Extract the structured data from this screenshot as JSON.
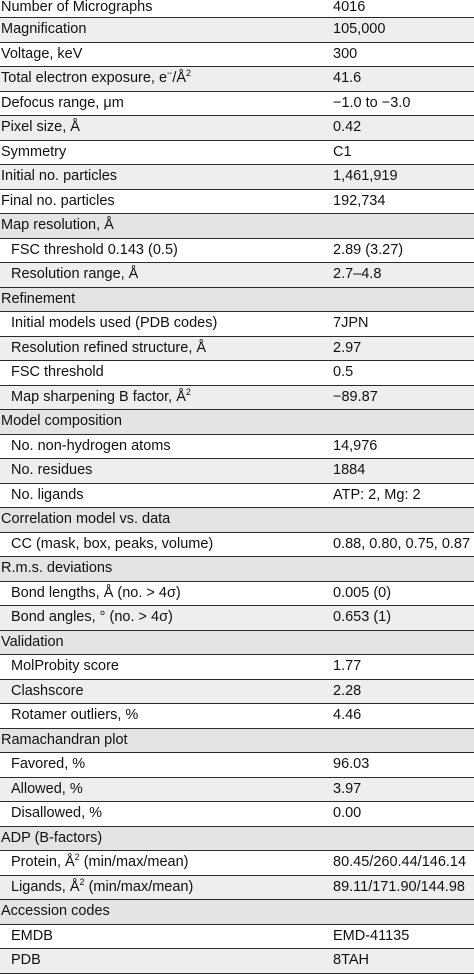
{
  "rows": [
    {
      "label": "Number of Micrographs",
      "value": "4016",
      "type": "top"
    },
    {
      "label": "Magnification",
      "value": "105,000",
      "type": "shade"
    },
    {
      "label": "Voltage, keV",
      "value": "300",
      "type": "plain"
    },
    {
      "label": "Total electron exposure, e",
      "label_sup": "−",
      "label_mid": "/Å",
      "label_sup2": "2",
      "value": "41.6",
      "type": "shade"
    },
    {
      "label": "Defocus range, μm",
      "value": "−1.0 to −3.0",
      "type": "plain"
    },
    {
      "label": "Pixel size, Å",
      "value": "0.42",
      "type": "shade"
    },
    {
      "label": "Symmetry",
      "value": "C1",
      "type": "plain"
    },
    {
      "label": "Initial no. particles",
      "value": "1,461,919",
      "type": "shade"
    },
    {
      "label": "Final no. particles",
      "value": "192,734",
      "type": "plain"
    },
    {
      "label": "Map resolution, Å",
      "value": "",
      "type": "section"
    },
    {
      "label": "FSC threshold 0.143 (0.5)",
      "value": "2.89 (3.27)",
      "type": "sub"
    },
    {
      "label": "Resolution range, Å",
      "value": "2.7–4.8",
      "type": "sub shade"
    },
    {
      "label": "Refinement",
      "value": "",
      "type": "section"
    },
    {
      "label": "Initial models used (PDB codes)",
      "value": "7JPN",
      "type": "sub"
    },
    {
      "label": "Resolution refined structure, Å",
      "value": "2.97",
      "type": "sub shade"
    },
    {
      "label": "FSC threshold",
      "value": "0.5",
      "type": "sub"
    },
    {
      "label": "Map sharpening B factor, Å",
      "label_sup": "2",
      "value": "−89.87",
      "type": "sub shade"
    },
    {
      "label": "Model composition",
      "value": "",
      "type": "section"
    },
    {
      "label": "No. non-hydrogen atoms",
      "value": "14,976",
      "type": "sub"
    },
    {
      "label": "No. residues",
      "value": "1884",
      "type": "sub shade"
    },
    {
      "label": "No. ligands",
      "value": "ATP: 2, Mg: 2",
      "type": "sub"
    },
    {
      "label": "Correlation model vs. data",
      "value": "",
      "type": "section"
    },
    {
      "label": "CC (mask, box, peaks, volume)",
      "value": "0.88, 0.80, 0.75, 0.87",
      "type": "sub"
    },
    {
      "label": "R.m.s. deviations",
      "value": "",
      "type": "section"
    },
    {
      "label": "Bond lengths, Å (no. > 4σ)",
      "value": "0.005 (0)",
      "type": "sub"
    },
    {
      "label": "Bond angles, ° (no. > 4σ)",
      "value": "0.653 (1)",
      "type": "sub shade"
    },
    {
      "label": "Validation",
      "value": "",
      "type": "section"
    },
    {
      "label": "MolProbity score",
      "value": "1.77",
      "type": "sub"
    },
    {
      "label": "Clashscore",
      "value": "2.28",
      "type": "sub shade"
    },
    {
      "label": "Rotamer outliers, %",
      "value": "4.46",
      "type": "sub"
    },
    {
      "label": "Ramachandran plot",
      "value": "",
      "type": "section"
    },
    {
      "label": "Favored, %",
      "value": "96.03",
      "type": "sub"
    },
    {
      "label": "Allowed, %",
      "value": "3.97",
      "type": "sub shade"
    },
    {
      "label": "Disallowed, %",
      "value": "0.00",
      "type": "sub"
    },
    {
      "label": "ADP (B-factors)",
      "value": "",
      "type": "section"
    },
    {
      "label": "Protein, Å",
      "label_sup": "2",
      "label_tail": " (min/max/mean)",
      "value": "80.45/260.44/146.14",
      "type": "sub"
    },
    {
      "label": "Ligands, Å",
      "label_sup": "2",
      "label_tail": " (min/max/mean)",
      "value": "89.11/171.90/144.98",
      "type": "sub shade"
    },
    {
      "label": "Accession codes",
      "value": "",
      "type": "section"
    },
    {
      "label": "EMDB",
      "value": "EMD-41135",
      "type": "sub"
    },
    {
      "label": "PDB",
      "value": "8TAH",
      "type": "sub shade"
    }
  ]
}
